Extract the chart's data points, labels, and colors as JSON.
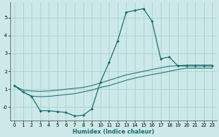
{
  "xlabel": "Humidex (Indice chaleur)",
  "bg_color": "#cce8e8",
  "grid_color": "#aacfcf",
  "line_color": "#1a6b6b",
  "x": [
    0,
    1,
    2,
    3,
    4,
    5,
    6,
    7,
    8,
    9,
    10,
    11,
    12,
    13,
    14,
    15,
    16,
    17,
    18,
    19,
    20,
    21,
    22,
    23
  ],
  "y_main": [
    1.2,
    0.85,
    0.6,
    -0.2,
    -0.2,
    -0.25,
    -0.3,
    -0.5,
    -0.45,
    -0.1,
    1.4,
    2.5,
    3.7,
    5.3,
    5.4,
    5.5,
    4.8,
    2.7,
    2.8,
    2.3,
    2.3,
    2.3,
    2.3,
    2.3
  ],
  "y_upper": [
    1.2,
    0.95,
    0.9,
    0.88,
    0.9,
    0.95,
    1.0,
    1.05,
    1.1,
    1.2,
    1.35,
    1.5,
    1.65,
    1.8,
    1.9,
    2.0,
    2.1,
    2.2,
    2.28,
    2.32,
    2.35,
    2.35,
    2.35,
    2.35
  ],
  "y_lower": [
    1.2,
    0.85,
    0.62,
    0.58,
    0.6,
    0.65,
    0.7,
    0.75,
    0.85,
    0.95,
    1.1,
    1.2,
    1.35,
    1.5,
    1.62,
    1.72,
    1.82,
    1.9,
    2.0,
    2.1,
    2.18,
    2.18,
    2.18,
    2.18
  ],
  "ylim": [
    -0.75,
    5.85
  ],
  "xlim": [
    -0.5,
    23.5
  ],
  "yticks": [
    0,
    1,
    2,
    3,
    4,
    5
  ],
  "ytick_labels": [
    "-0",
    "1",
    "2",
    "3",
    "4",
    "5"
  ],
  "xticks": [
    0,
    1,
    2,
    3,
    4,
    5,
    6,
    7,
    8,
    9,
    10,
    11,
    12,
    13,
    14,
    15,
    16,
    17,
    18,
    19,
    20,
    21,
    22,
    23
  ],
  "tick_fontsize": 5.0,
  "xlabel_fontsize": 6.0,
  "lw_main": 0.9,
  "lw_side": 0.75,
  "marker_size": 2.2
}
